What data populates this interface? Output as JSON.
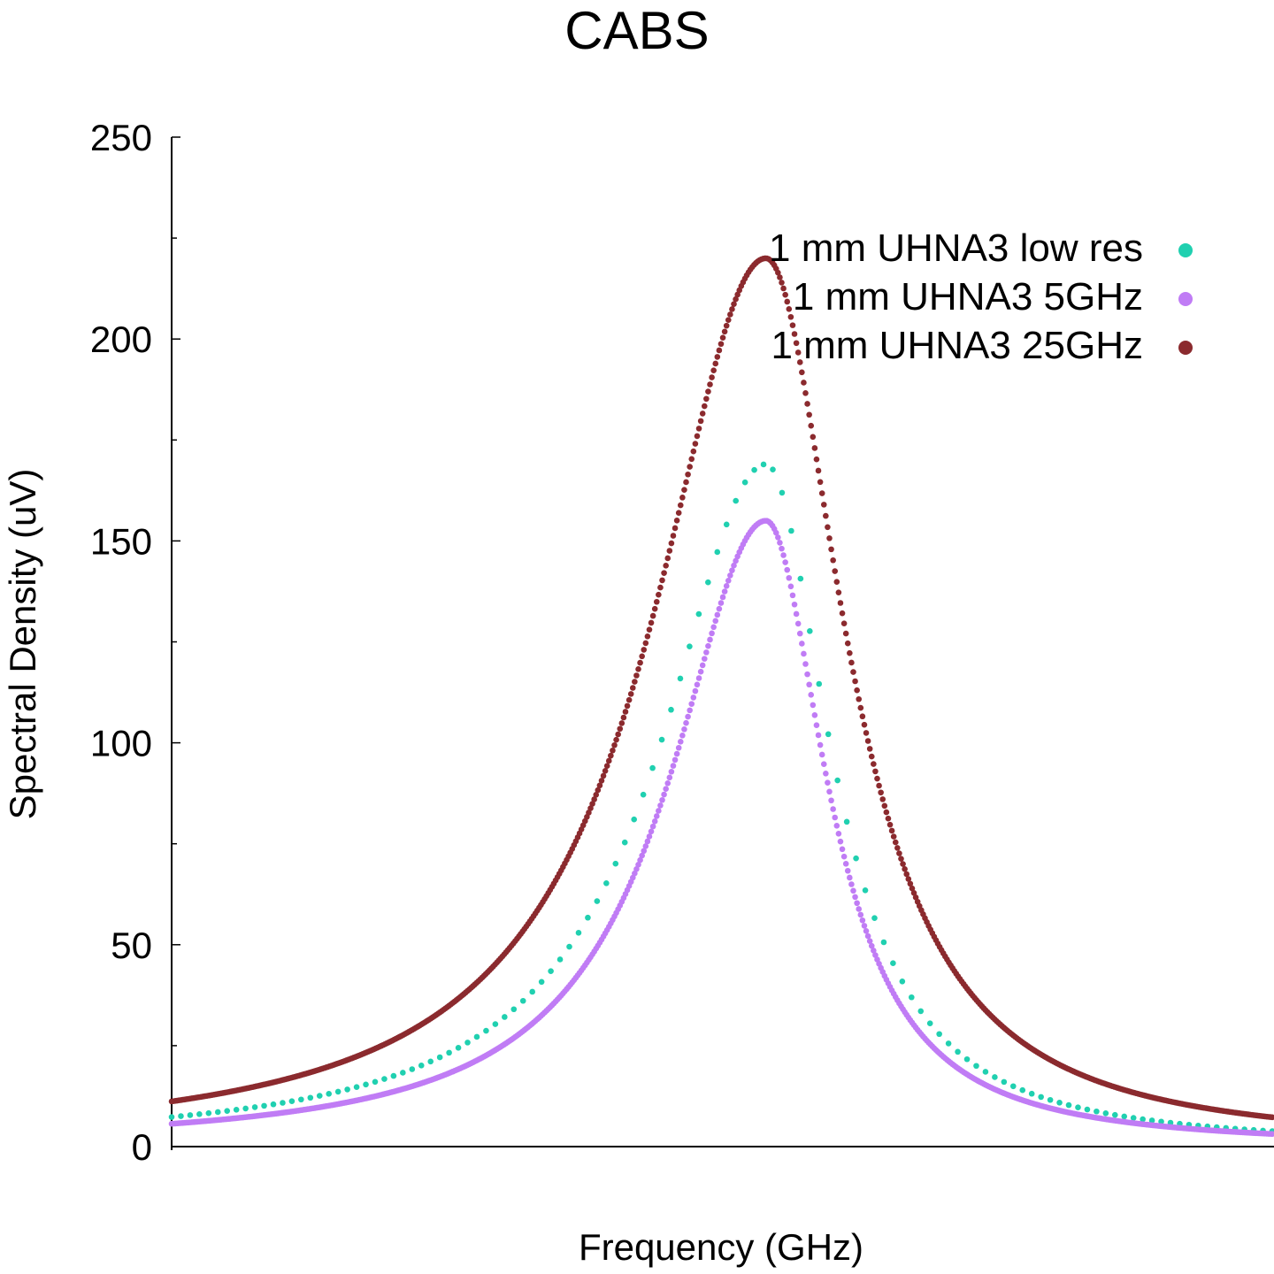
{
  "chart_data": {
    "type": "scatter",
    "title": "CABS",
    "xlabel": "Frequency (GHz)",
    "ylabel": "Spectral Density (uV)",
    "xlim": [
      0,
      100
    ],
    "ylim": [
      0,
      250
    ],
    "y_ticks": [
      0,
      50,
      100,
      150,
      200,
      250
    ],
    "y_minor_step": 25,
    "x_ticks_shown": false,
    "grid": false,
    "legend_position": "top-right",
    "peak_x": 54,
    "series": [
      {
        "name": "1 mm UHNA3 low res",
        "color": "#20d0b0",
        "peak": 169,
        "gamma_left": 11.5,
        "gamma_right": 7,
        "n_points": 120,
        "point_radius": 3.3
      },
      {
        "name": "1 mm UHNA3 5GHz",
        "color": "#c07cf5",
        "peak": 155,
        "gamma_left": 10.5,
        "gamma_right": 6.6,
        "n_points": 600,
        "point_radius": 3.3
      },
      {
        "name": "1 mm UHNA3 25GHz",
        "color": "#8b2a2e",
        "peak": 220,
        "gamma_left": 12.5,
        "gamma_right": 8.5,
        "n_points": 600,
        "point_radius": 3.3
      }
    ]
  }
}
